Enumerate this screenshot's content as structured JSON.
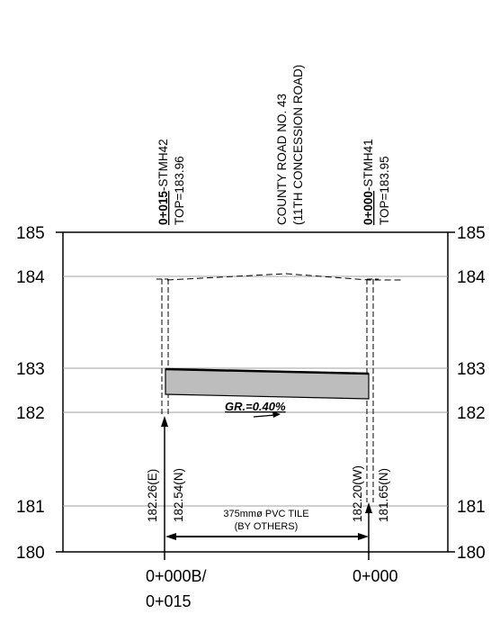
{
  "y_axis": {
    "ticks": [
      "185",
      "184",
      "183",
      "182",
      "181",
      "180"
    ]
  },
  "top_labels": {
    "stmh42_station": "0+015",
    "stmh42_suffix": "-STMH42",
    "stmh42_top": "TOP=183.96",
    "road_line1": "COUNTY ROAD NO. 43",
    "road_line2": "(11TH CONCESSION ROAD)",
    "stmh41_station": "0+000",
    "stmh41_suffix": "-STMH41",
    "stmh41_top": "TOP=183.95"
  },
  "inverts": {
    "left_e": "182.26(E)",
    "left_n": "182.54(N)",
    "right_w": "182.20(W)",
    "right_n": "181.65(N)"
  },
  "grade_label": "GR.=0.40%",
  "pipe_label": {
    "line1": "375mmø PVC TILE",
    "line2": "(BY OTHERS)"
  },
  "stations": {
    "left_line1": "0+000B/",
    "left_line2": "0+015",
    "right": "0+000"
  }
}
